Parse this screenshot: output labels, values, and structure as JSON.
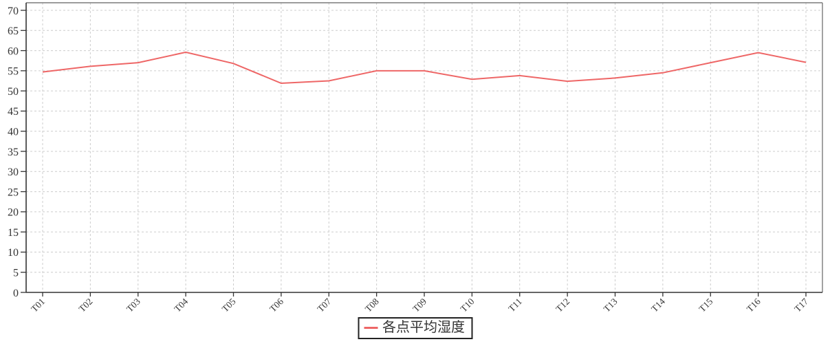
{
  "chart_data": {
    "type": "line",
    "title": "",
    "xlabel": "",
    "ylabel": "",
    "categories": [
      "T01",
      "T02",
      "T03",
      "T04",
      "T05",
      "T06",
      "T07",
      "T08",
      "T09",
      "T10",
      "T11",
      "T12",
      "T13",
      "T14",
      "T15",
      "T16",
      "T17"
    ],
    "series": [
      {
        "name": "各点平均湿度",
        "color": "#ee6666",
        "values": [
          54.7,
          56.1,
          57.0,
          59.6,
          56.8,
          51.9,
          52.5,
          55.0,
          55.0,
          52.9,
          53.8,
          52.4,
          53.2,
          54.5,
          57.0,
          59.5,
          57.1
        ]
      }
    ],
    "ylim": [
      0,
      70
    ],
    "y_ticks": [
      0,
      5,
      10,
      15,
      20,
      25,
      30,
      35,
      40,
      45,
      50,
      55,
      60,
      65,
      70
    ],
    "grid": "dashed both horizontal and vertical",
    "x_label_rotation": -45,
    "legend_position": "bottom-center",
    "markers": "none"
  },
  "legend": {
    "label": "各点平均湿度",
    "marker_color": "#ee6666"
  },
  "colors": {
    "series_line": "#ee6666",
    "axis": "#333333",
    "plot_border": "#7a7a7a",
    "gridline": "#cccccc",
    "tick_label": "#333333",
    "background": "#ffffff"
  }
}
